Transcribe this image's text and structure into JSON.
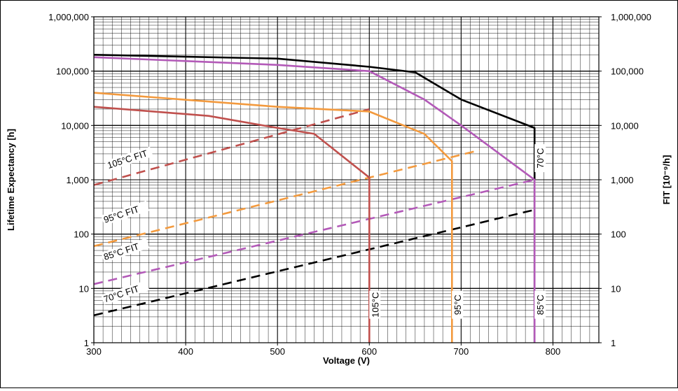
{
  "chart_data": {
    "type": "line",
    "xlabel": "Voltage (V)",
    "ylabel_left": "Lifetime Expectancy [h]",
    "ylabel_right": "FIT [10⁻⁹/h]",
    "xlim": [
      300,
      850
    ],
    "ylim": [
      1,
      1000000
    ],
    "yscale": "log",
    "grid": true,
    "x_ticks": [
      300,
      400,
      500,
      600,
      700,
      800
    ],
    "x_tick_labels": [
      "300",
      "400",
      "500",
      "600",
      "700",
      "800"
    ],
    "y_ticks": [
      1,
      10,
      100,
      1000,
      10000,
      100000,
      1000000
    ],
    "y_tick_labels": [
      "1",
      "10",
      "100",
      "1,000",
      "10,000",
      "100,000",
      "1,000,000"
    ],
    "colors": {
      "70C": "#000000",
      "85C": "#b35ab8",
      "95C": "#f39a3e",
      "105C": "#c0504d"
    },
    "series": [
      {
        "key": "70C",
        "kind": "lifetime",
        "style": "solid",
        "x": [
          300,
          500,
          600,
          650,
          700,
          780,
          780
        ],
        "y": [
          200000,
          170000,
          120000,
          95000,
          30000,
          9000,
          1
        ]
      },
      {
        "key": "85C",
        "kind": "lifetime",
        "style": "solid",
        "x": [
          300,
          500,
          600,
          660,
          700,
          780,
          780
        ],
        "y": [
          180000,
          130000,
          100000,
          30000,
          10000,
          1000,
          1
        ]
      },
      {
        "key": "95C",
        "kind": "lifetime",
        "style": "solid",
        "x": [
          300,
          500,
          600,
          660,
          690,
          690
        ],
        "y": [
          40000,
          22000,
          18000,
          7000,
          2200,
          1
        ]
      },
      {
        "key": "105C",
        "kind": "lifetime",
        "style": "solid",
        "x": [
          300,
          425,
          500,
          540,
          600,
          600
        ],
        "y": [
          22000,
          15000,
          9000,
          7000,
          1100,
          1
        ]
      },
      {
        "key": "70C",
        "kind": "fit",
        "style": "dashed",
        "x": [
          300,
          780
        ],
        "y": [
          3.2,
          280
        ]
      },
      {
        "key": "85C",
        "kind": "fit",
        "style": "dashed",
        "x": [
          300,
          780
        ],
        "y": [
          12,
          1000
        ]
      },
      {
        "key": "95C",
        "kind": "fit",
        "style": "dashed",
        "x": [
          300,
          720
        ],
        "y": [
          60,
          3500
        ]
      },
      {
        "key": "105C",
        "kind": "fit",
        "style": "dashed",
        "x": [
          300,
          600
        ],
        "y": [
          800,
          20000
        ]
      }
    ],
    "annotations": [
      {
        "text": "105°C FIT",
        "color_key": "105C",
        "x": 316,
        "y": 1600
      },
      {
        "text": "95°C FIT",
        "color_key": "95C",
        "x": 312,
        "y": 160
      },
      {
        "text": "85°C FIT",
        "color_key": "85C",
        "x": 312,
        "y": 33
      },
      {
        "text": "70°C FIT",
        "color_key": "70C",
        "x": 312,
        "y": 5.5
      }
    ],
    "vertical_labels": [
      {
        "text": "70°C",
        "x": 780,
        "y": 2500
      },
      {
        "text": "105°C",
        "x": 600,
        "y": 5
      },
      {
        "text": "95°C",
        "x": 690,
        "y": 5
      },
      {
        "text": "85°C",
        "x": 780,
        "y": 5
      }
    ]
  }
}
